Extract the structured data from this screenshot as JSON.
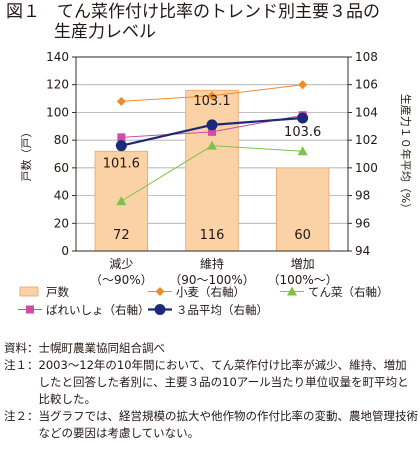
{
  "figure": {
    "title_line1": "図１　てん菜作付け比率のトレンド別主要３品の",
    "title_line2": "生産力レベル"
  },
  "chart_data": {
    "type": "bar",
    "categories": [
      [
        "減少",
        "（〜90%）"
      ],
      [
        "維持",
        "（90〜100%）"
      ],
      [
        "増加",
        "（100%〜）"
      ]
    ],
    "left_axis": {
      "label": "戸数（戸）",
      "min": 0,
      "max": 140,
      "ticks": [
        0,
        20,
        40,
        60,
        80,
        100,
        120,
        140
      ]
    },
    "right_axis": {
      "label": "生産力１０年平均（%）",
      "min": 94,
      "max": 108,
      "ticks": [
        94,
        96,
        98,
        100,
        102,
        104,
        106,
        108
      ]
    },
    "grid": true,
    "legend_position": "bottom",
    "series": [
      {
        "name": "戸数",
        "type": "bar",
        "axis": "left",
        "values": [
          72,
          116,
          60
        ],
        "data_labels": [
          "72",
          "116",
          "60"
        ],
        "color": "#fbd2a6"
      },
      {
        "name": "小麦（右軸）",
        "type": "line",
        "axis": "right",
        "values": [
          104.8,
          105.2,
          106.0
        ],
        "color": "#f08c28",
        "marker": "diamond"
      },
      {
        "name": "てん菜（右軸）",
        "type": "line",
        "axis": "right",
        "values": [
          97.6,
          101.6,
          101.2
        ],
        "color": "#7dc24a",
        "marker": "triangle"
      },
      {
        "name": "ばれいしょ（右軸）",
        "type": "line",
        "axis": "right",
        "values": [
          102.2,
          102.6,
          103.8
        ],
        "color": "#d24ca6",
        "marker": "square"
      },
      {
        "name": "３品平均（右軸）",
        "type": "line",
        "axis": "right",
        "values": [
          101.6,
          103.1,
          103.6
        ],
        "data_labels": [
          "101.6",
          "103.1",
          "103.6"
        ],
        "color": "#1d2a78",
        "marker": "circle"
      }
    ]
  },
  "notes": [
    {
      "key": "資料：",
      "text": "士幌町農業協同組合調べ"
    },
    {
      "key": "注１：",
      "text": "2003〜12年の10年間において、てん菜作付け比率が減少、維持、増加したと回答した者別に、主要３品の10アール当たり単位収量を町平均と比較した。"
    },
    {
      "key": "注２：",
      "text": "当グラフでは、経営規模の拡大や他作物の作付比率の変動、農地管理技術などの要因は考慮していない。"
    }
  ]
}
